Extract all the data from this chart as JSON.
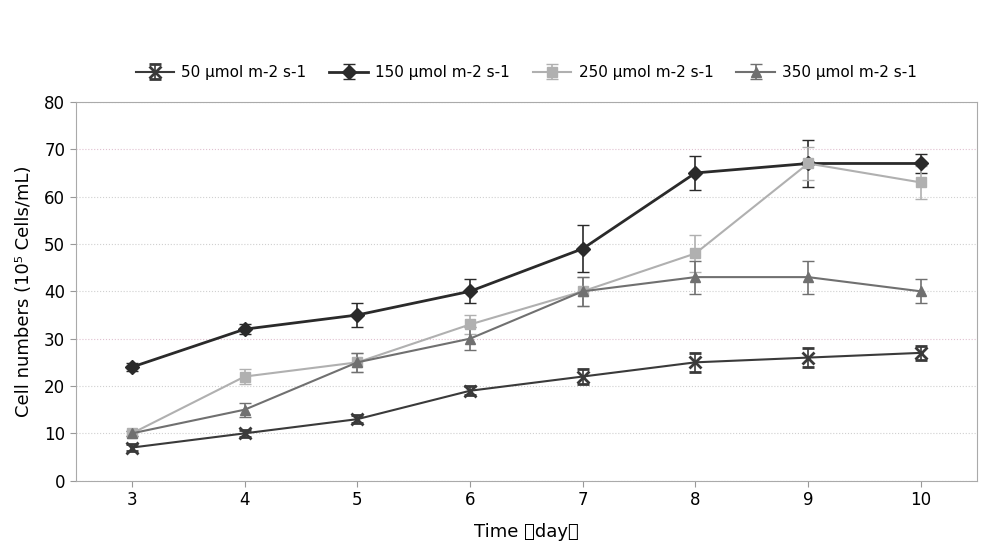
{
  "x": [
    3,
    4,
    5,
    6,
    7,
    8,
    9,
    10
  ],
  "series": [
    {
      "label": "50 μmol m-2 s-1",
      "y": [
        7,
        10,
        13,
        19,
        22,
        25,
        26,
        27
      ],
      "yerr": [
        0.8,
        0.8,
        0.8,
        1.0,
        1.5,
        2.0,
        2.0,
        1.5
      ],
      "color": "#3a3a3a",
      "marker": "x",
      "linewidth": 1.5,
      "markersize": 8,
      "markeredgewidth": 2.0
    },
    {
      "label": "150 μmol m-2 s-1",
      "y": [
        24,
        32,
        35,
        40,
        49,
        65,
        67,
        67
      ],
      "yerr": [
        0.8,
        1.0,
        2.5,
        2.5,
        5.0,
        3.5,
        5.0,
        2.0
      ],
      "color": "#2a2a2a",
      "marker": "D",
      "linewidth": 2.0,
      "markersize": 7,
      "markeredgewidth": 1.0
    },
    {
      "label": "250 μmol m-2 s-1",
      "y": [
        10,
        22,
        25,
        33,
        40,
        48,
        67,
        63
      ],
      "yerr": [
        0.5,
        1.5,
        2.0,
        2.0,
        3.0,
        4.0,
        3.5,
        3.5
      ],
      "color": "#b0b0b0",
      "marker": "s",
      "linewidth": 1.5,
      "markersize": 7,
      "markeredgewidth": 1.0
    },
    {
      "label": "350 μmol m-2 s-1",
      "y": [
        10,
        15,
        25,
        30,
        40,
        43,
        43,
        40
      ],
      "yerr": [
        0.5,
        1.5,
        2.0,
        2.5,
        3.0,
        3.5,
        3.5,
        2.5
      ],
      "color": "#707070",
      "marker": "^",
      "linewidth": 1.5,
      "markersize": 7,
      "markeredgewidth": 1.0
    }
  ],
  "xlabel": "Time （day）",
  "ylabel": "Cell numbers (10⁵ Cells/mL)",
  "xlim": [
    2.5,
    10.5
  ],
  "ylim": [
    0,
    80
  ],
  "yticks": [
    0,
    10,
    20,
    30,
    40,
    50,
    60,
    70,
    80
  ],
  "xticks": [
    3,
    4,
    5,
    6,
    7,
    8,
    9,
    10
  ],
  "grid_yticks_normal": [
    0,
    10,
    20,
    40,
    50,
    60,
    80
  ],
  "grid_yticks_pink": [
    30,
    70
  ],
  "grid_color_normal": "#d0d0d0",
  "grid_color_pink": "#e0c0d0",
  "background_color": "#ffffff",
  "label_fontsize": 13,
  "tick_fontsize": 12,
  "legend_fontsize": 11
}
